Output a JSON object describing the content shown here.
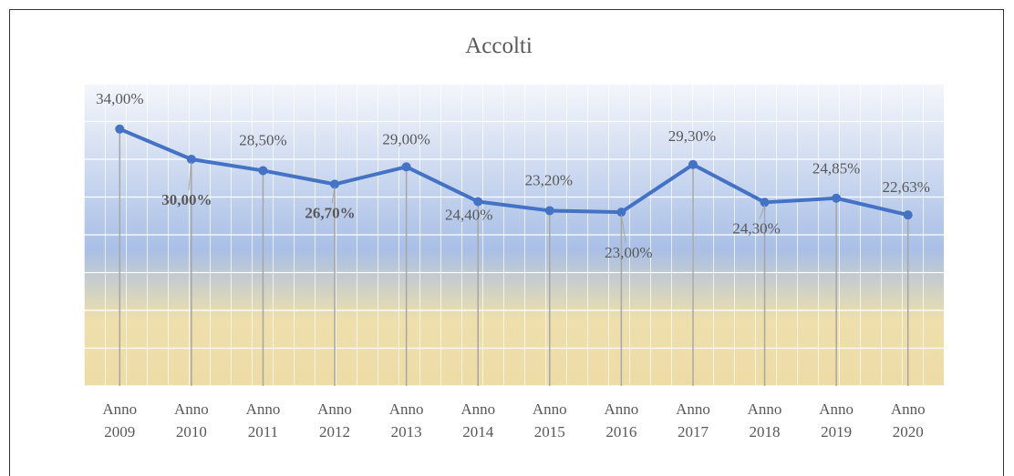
{
  "chart_data": {
    "type": "line",
    "title": "Accolti",
    "categories": [
      "Anno 2009",
      "Anno 2010",
      "Anno 2011",
      "Anno 2012",
      "Anno 2013",
      "Anno 2014",
      "Anno 2015",
      "Anno 2016",
      "Anno 2017",
      "Anno 2018",
      "Anno 2019",
      "Anno 2020"
    ],
    "values": [
      34,
      30,
      28.5,
      26.7,
      29,
      24.4,
      23.2,
      23,
      29.3,
      24.3,
      24.85,
      22.63
    ],
    "value_labels": [
      "34,00%",
      "30,00%",
      "28,50%",
      "26,70%",
      "29,00%",
      "24,40%",
      "23,20%",
      "23,00%",
      "29,30%",
      "24,30%",
      "24,85%",
      "22,63%"
    ],
    "color": "#4472c4",
    "ylim": [
      0,
      40
    ],
    "yticks": [
      0,
      5,
      10,
      15,
      20,
      25,
      30,
      35,
      40
    ],
    "grid": true
  }
}
